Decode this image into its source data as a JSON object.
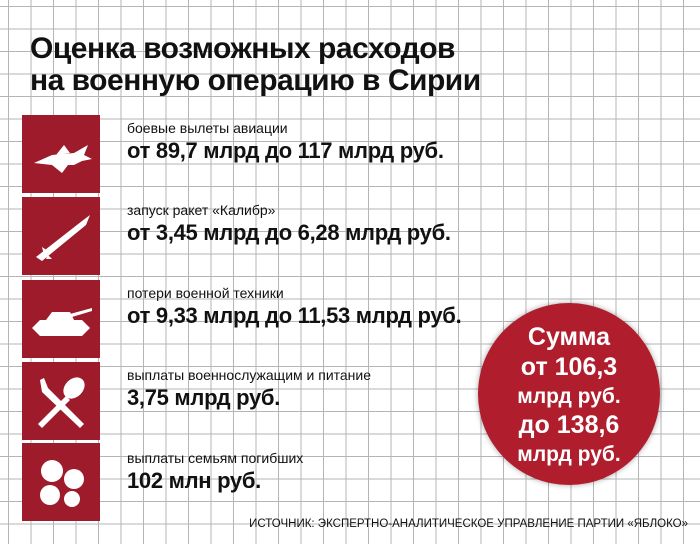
{
  "header": {
    "title": [
      "Оценка возможных расходов",
      "на военную операцию в Сирии"
    ]
  },
  "items": [
    {
      "label": "боевые вылеты авиации",
      "value": "от 89,7 млрд до 117 млрд руб."
    },
    {
      "label": "запуск ракет «Калибр»",
      "value": "от 3,45 млрд до 6,28 млрд руб."
    },
    {
      "label": "потери военной техники",
      "value": "от 9,33 млрд до 11,53 млрд руб."
    },
    {
      "label": "выплаты военнослужащим и питание",
      "value": "3,75 млрд руб."
    },
    {
      "label": "выплаты семьям погибших",
      "value": "102 млн руб."
    }
  ],
  "summary": [
    "Сумма",
    "от 106,3",
    "млрд руб.",
    "до 138,6",
    "млрд руб."
  ],
  "source": "ИСТОЧНИК: ЭКСПЕРТНО-АНАЛИТИЧЕСКОЕ УПРАВЛЕНИЕ ПАРТИИ «ЯБЛОКО»"
}
